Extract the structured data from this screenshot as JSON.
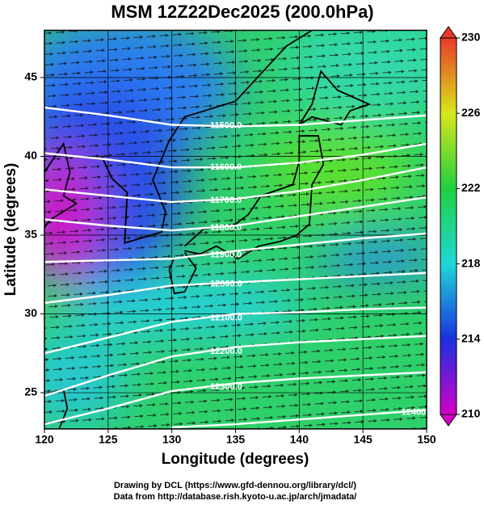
{
  "chart_data": {
    "type": "contour-map",
    "title": "MSM 12Z22Dec2025 (200.0hPa)",
    "xlabel": "Longitude (degrees)",
    "ylabel": "Latitude  (degrees)",
    "xlim": [
      120,
      150
    ],
    "ylim": [
      22.7,
      48
    ],
    "xticks": [
      120,
      125,
      130,
      135,
      140,
      145,
      150
    ],
    "yticks": [
      25,
      30,
      35,
      40,
      45
    ],
    "colorbar": {
      "lim": [
        210,
        230
      ],
      "ticks": [
        210,
        214,
        218,
        222,
        226,
        230
      ],
      "colors": [
        "#d400c8",
        "#1a30e0",
        "#20d8d8",
        "#1fd040",
        "#d8e61a",
        "#e83a2a"
      ]
    },
    "contours": {
      "lons": [
        120,
        125,
        130,
        135,
        140,
        145,
        150
      ],
      "color": "#ffffff",
      "lines": [
        {
          "label": "11500.0",
          "lats": [
            43.1,
            42.6,
            42.0,
            41.9,
            42.0,
            42.3,
            42.6
          ]
        },
        {
          "label": "11600.0",
          "lats": [
            40.2,
            39.8,
            39.3,
            39.3,
            39.6,
            40.1,
            40.8
          ]
        },
        {
          "label": "11700.0",
          "lats": [
            37.9,
            37.5,
            37.1,
            37.3,
            37.8,
            38.5,
            39.3
          ]
        },
        {
          "label": "11800.0",
          "lats": [
            36.0,
            35.6,
            35.3,
            35.6,
            36.2,
            36.8,
            37.4
          ]
        },
        {
          "label": "11900.0",
          "lats": [
            33.3,
            33.4,
            33.5,
            34.0,
            34.4,
            34.8,
            35.1
          ]
        },
        {
          "label": "12000.0",
          "lats": [
            30.7,
            31.2,
            31.8,
            32.0,
            32.2,
            32.4,
            32.6
          ]
        },
        {
          "label": "12100.0",
          "lats": [
            27.5,
            28.5,
            29.5,
            30.0,
            30.1,
            30.3,
            30.4
          ]
        },
        {
          "label": "12200.0",
          "lats": [
            24.8,
            26.1,
            27.3,
            27.9,
            28.2,
            28.4,
            28.6
          ]
        },
        {
          "label": "12300.0",
          "lats": [
            23.0,
            24.0,
            25.1,
            25.6,
            25.9,
            26.1,
            26.3
          ]
        },
        {
          "label": "12400.0",
          "lats": [
            null,
            null,
            22.8,
            23.0,
            23.3,
            23.6,
            23.9
          ]
        }
      ]
    },
    "footer": [
      "Drawing by DCL (https://www.gfd-dennou.org/library/dcl/)",
      "Data from http://database.rish.kyoto-u.ac.jp/arch/jmadata/"
    ]
  }
}
